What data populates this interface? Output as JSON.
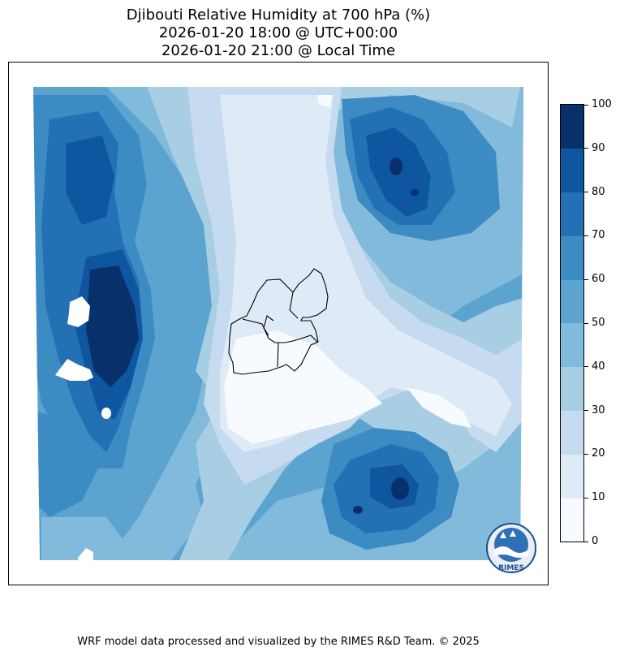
{
  "title": {
    "line1": "Djibouti Relative Humidity at 700 hPa (%)",
    "line2": "2026-01-20 18:00 @ UTC+00:00",
    "line3": "2026-01-20 21:00 @ Local Time"
  },
  "colorbar": {
    "ticks": [
      "0",
      "10",
      "20",
      "30",
      "40",
      "50",
      "60",
      "70",
      "80",
      "90",
      "100"
    ],
    "colors": [
      "#f7fbff",
      "#deebf7",
      "#c6dbef",
      "#a8cee4",
      "#82badb",
      "#5ca4d0",
      "#3d8bc3",
      "#2370b4",
      "#0f56a0",
      "#08306b"
    ]
  },
  "logo": {
    "text": "RIMES"
  },
  "credit": "WRF model data processed and visualized by the RIMES R&D Team. © 2025"
}
